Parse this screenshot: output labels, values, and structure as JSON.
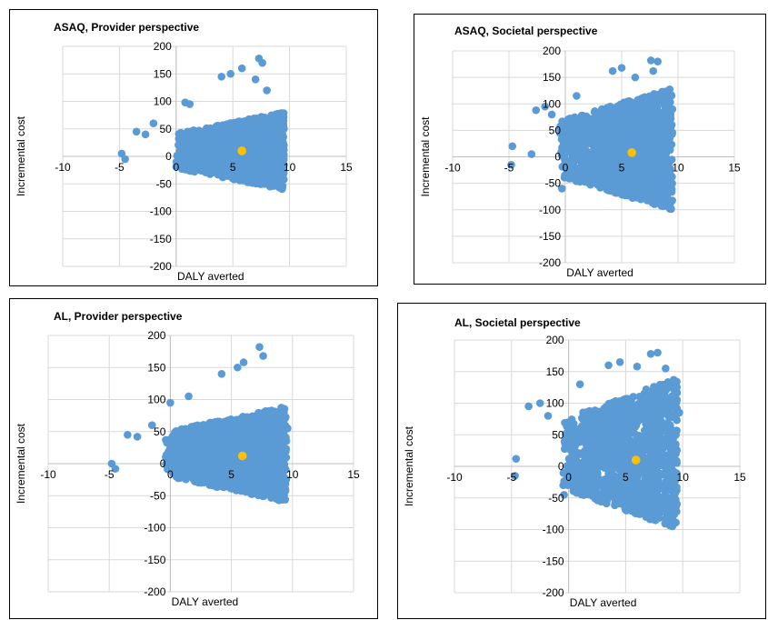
{
  "chart_data": [
    {
      "type": "scatter",
      "title": "ASAQ, Provider perspective",
      "xlabel": "DALY averted",
      "ylabel": "Incremental cost",
      "xlim": [
        -10,
        15
      ],
      "ylim": [
        -200,
        200
      ],
      "x_ticks": [
        -10,
        -5,
        0,
        5,
        10,
        15
      ],
      "y_ticks": [
        -200,
        -150,
        -100,
        -50,
        0,
        50,
        100,
        150,
        200
      ],
      "grid": true,
      "cloud": {
        "x_range": [
          0,
          9.5
        ],
        "y_range": [
          -50,
          90
        ]
      },
      "outliers": [
        [
          -4.8,
          5
        ],
        [
          -4.5,
          -5
        ],
        [
          -3.5,
          45
        ],
        [
          -2.7,
          40
        ],
        [
          -2,
          60
        ],
        [
          0.8,
          98
        ],
        [
          1.2,
          95
        ],
        [
          4,
          145
        ],
        [
          4.8,
          150
        ],
        [
          5.8,
          160
        ],
        [
          7.3,
          178
        ],
        [
          7.6,
          170
        ],
        [
          7,
          140
        ],
        [
          8,
          120
        ],
        [
          9.5,
          50
        ]
      ],
      "series": [
        {
          "color": "#5b9bd5"
        }
      ],
      "highlight": {
        "x": 5.8,
        "y": 10,
        "color": "#ffc000"
      }
    },
    {
      "type": "scatter",
      "title": "ASAQ, Societal perspective",
      "xlabel": "DALY averted",
      "ylabel": "Incremental cost",
      "xlim": [
        -10,
        15
      ],
      "ylim": [
        -200,
        200
      ],
      "x_ticks": [
        -10,
        -5,
        0,
        5,
        10,
        15
      ],
      "y_ticks": [
        -200,
        -150,
        -100,
        -50,
        0,
        50,
        100,
        150,
        200
      ],
      "grid": true,
      "cloud": {
        "x_range": [
          -0.5,
          9.5
        ],
        "y_range": [
          -90,
          140
        ]
      },
      "outliers": [
        [
          -4.7,
          20
        ],
        [
          -4.8,
          -15
        ],
        [
          -3,
          5
        ],
        [
          -2.6,
          88
        ],
        [
          -1.8,
          95
        ],
        [
          -1.2,
          80
        ],
        [
          -0.3,
          -60
        ],
        [
          1,
          115
        ],
        [
          4.2,
          162
        ],
        [
          5,
          168
        ],
        [
          6.2,
          150
        ],
        [
          7.6,
          182
        ],
        [
          8.2,
          180
        ],
        [
          7.8,
          162
        ],
        [
          9.5,
          90
        ]
      ],
      "series": [
        {
          "color": "#5b9bd5"
        }
      ],
      "highlight": {
        "x": 5.9,
        "y": 8,
        "color": "#ffc000"
      }
    },
    {
      "type": "scatter",
      "title": "AL, Provider perspective",
      "xlabel": "DALY averted",
      "ylabel": "Incremental cost",
      "xlim": [
        -10,
        15
      ],
      "ylim": [
        -200,
        200
      ],
      "x_ticks": [
        -10,
        -5,
        0,
        5,
        10,
        15
      ],
      "y_ticks": [
        -200,
        -150,
        -100,
        -50,
        0,
        50,
        100,
        150,
        200
      ],
      "grid": true,
      "cloud": {
        "x_range": [
          -0.5,
          9.5
        ],
        "y_range": [
          -50,
          100
        ]
      },
      "outliers": [
        [
          -4.8,
          0
        ],
        [
          -4.5,
          -8
        ],
        [
          -3.5,
          45
        ],
        [
          -2.7,
          42
        ],
        [
          -1.5,
          60
        ],
        [
          0,
          95
        ],
        [
          1.5,
          105
        ],
        [
          4.2,
          140
        ],
        [
          5.5,
          150
        ],
        [
          6,
          158
        ],
        [
          7.3,
          182
        ],
        [
          7.6,
          168
        ],
        [
          9.6,
          55
        ]
      ],
      "series": [
        {
          "color": "#5b9bd5"
        }
      ],
      "highlight": {
        "x": 5.9,
        "y": 12,
        "color": "#ffc000"
      }
    },
    {
      "type": "scatter",
      "title": "AL, Societal perspective",
      "xlabel": "DALY averted",
      "ylabel": "Incremental cost",
      "xlim": [
        -10,
        15
      ],
      "ylim": [
        -200,
        200
      ],
      "x_ticks": [
        -10,
        -5,
        0,
        5,
        10,
        15
      ],
      "y_ticks": [
        -200,
        -150,
        -100,
        -50,
        0,
        50,
        100,
        150,
        200
      ],
      "grid": true,
      "cloud": {
        "x_range": [
          -0.5,
          9.5
        ],
        "y_range": [
          -90,
          150
        ]
      },
      "outliers": [
        [
          -4.6,
          12
        ],
        [
          -4.7,
          -15
        ],
        [
          -3.5,
          95
        ],
        [
          -2.5,
          100
        ],
        [
          -1.8,
          80
        ],
        [
          -0.4,
          -45
        ],
        [
          1,
          130
        ],
        [
          3.5,
          160
        ],
        [
          4.5,
          165
        ],
        [
          6,
          158
        ],
        [
          7.2,
          178
        ],
        [
          7.8,
          180
        ],
        [
          8.5,
          155
        ],
        [
          9.7,
          85
        ]
      ],
      "series": [
        {
          "color": "#5b9bd5"
        }
      ],
      "highlight": {
        "x": 5.9,
        "y": 10,
        "color": "#ffc000"
      }
    }
  ]
}
